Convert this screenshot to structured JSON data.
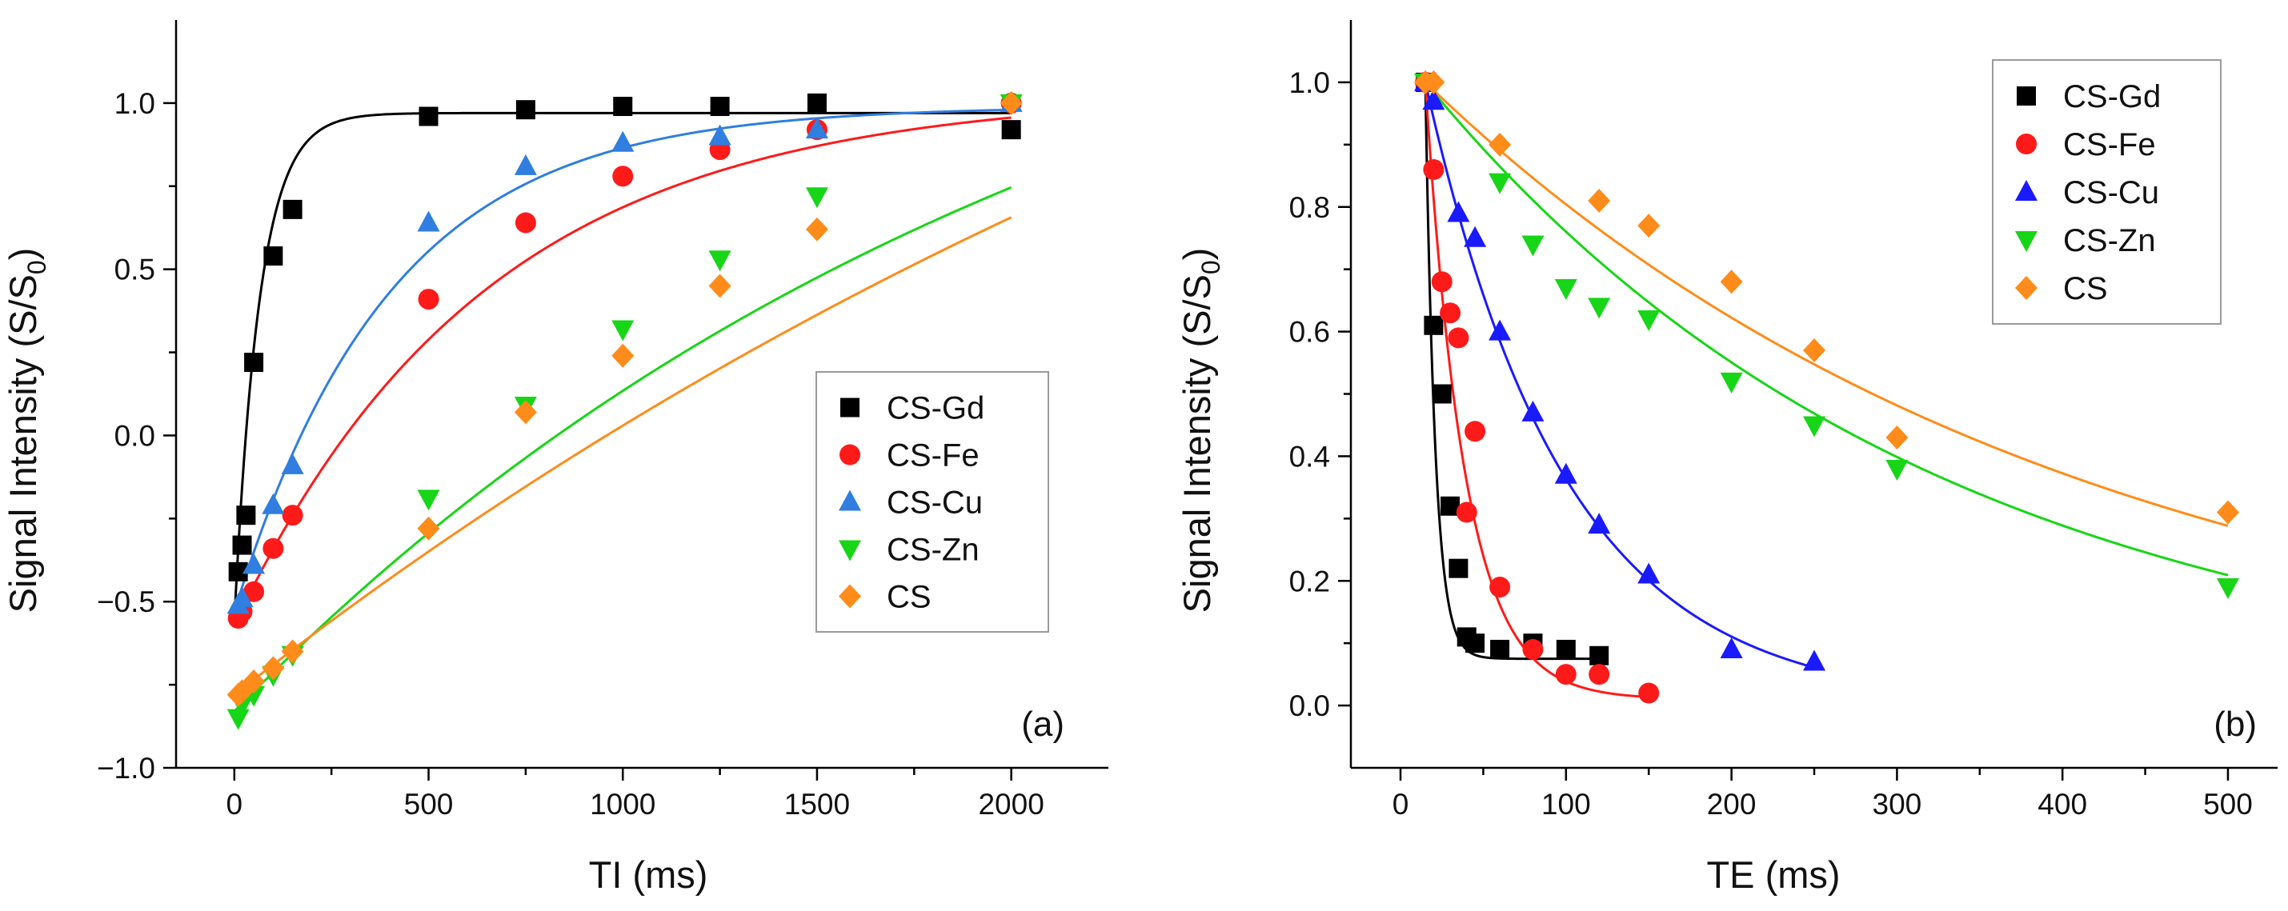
{
  "figure": {
    "panels_text": [
      "(a)",
      "(b)"
    ]
  },
  "chart_data": [
    {
      "type": "scatter",
      "panel_label": "(a)",
      "title": "",
      "xlabel": "TI (ms)",
      "ylabel": "Signal Intensity (S/S0)",
      "ylabel_parts": {
        "main": "Signal Intensity (S/S",
        "sub": "0",
        "end": ")"
      },
      "xlim": [
        -150,
        2250
      ],
      "ylim": [
        -1.0,
        1.25
      ],
      "xticks": [
        0,
        500,
        1000,
        1500,
        2000
      ],
      "xtick_labels": [
        "0",
        "500",
        "1000",
        "1500",
        "2000"
      ],
      "yticks": [
        -1.0,
        -0.5,
        0.0,
        0.5,
        1.0
      ],
      "ytick_labels": [
        "−1.0",
        "−0.5",
        "0.0",
        "0.5",
        "1.0"
      ],
      "legend_position": "lower-right",
      "series": [
        {
          "name": "CS-Gd",
          "color": "#000000",
          "marker": "square",
          "x": [
            10,
            20,
            30,
            50,
            100,
            150,
            500,
            750,
            1000,
            1250,
            1500,
            2000
          ],
          "y": [
            -0.41,
            -0.33,
            -0.24,
            0.22,
            0.54,
            0.68,
            0.96,
            0.98,
            0.99,
            0.99,
            1.0,
            0.92
          ],
          "fit": {
            "model": "ir",
            "S0": 0.97,
            "A": 1.53,
            "T": 65
          }
        },
        {
          "name": "CS-Fe",
          "color": "#ff1a1a",
          "marker": "circle",
          "x": [
            10,
            20,
            50,
            100,
            150,
            500,
            750,
            1000,
            1250,
            1500,
            2000
          ],
          "y": [
            -0.55,
            -0.53,
            -0.47,
            -0.34,
            -0.24,
            0.41,
            0.64,
            0.78,
            0.86,
            0.92,
            1.0
          ],
          "fit": {
            "model": "ir",
            "S0": 1.03,
            "A": 1.6,
            "T": 650
          }
        },
        {
          "name": "CS-Cu",
          "color": "#2f7ee0",
          "marker": "triangle-up",
          "x": [
            10,
            20,
            50,
            100,
            150,
            500,
            750,
            1000,
            1250,
            1500,
            2000
          ],
          "y": [
            -0.51,
            -0.49,
            -0.39,
            -0.21,
            -0.09,
            0.64,
            0.81,
            0.88,
            0.9,
            0.92,
            1.0
          ],
          "fit": {
            "model": "ir",
            "S0": 0.99,
            "A": 1.52,
            "T": 400
          }
        },
        {
          "name": "CS-Zn",
          "color": "#17d617",
          "marker": "triangle-down",
          "x": [
            10,
            20,
            50,
            100,
            150,
            500,
            750,
            1000,
            1250,
            1500,
            2000
          ],
          "y": [
            -0.85,
            -0.81,
            -0.78,
            -0.72,
            -0.66,
            -0.19,
            0.09,
            0.32,
            0.53,
            0.72,
            1.0
          ],
          "fit": {
            "model": "ir",
            "S0": 1.81,
            "A": 2.64,
            "T": 2200
          }
        },
        {
          "name": "CS",
          "color": "#ff8c1a",
          "marker": "diamond",
          "x": [
            10,
            20,
            50,
            100,
            150,
            500,
            750,
            1000,
            1250,
            1500,
            2000
          ],
          "y": [
            -0.78,
            -0.77,
            -0.74,
            -0.7,
            -0.65,
            -0.28,
            0.07,
            0.24,
            0.45,
            0.62,
            1.0
          ],
          "fit": {
            "model": "ir",
            "S0": 2.8,
            "A": 3.58,
            "T": 3900
          }
        }
      ]
    },
    {
      "type": "scatter",
      "panel_label": "(b)",
      "title": "",
      "xlabel": "TE (ms)",
      "ylabel": "Signal Intensity (S/S0)",
      "ylabel_parts": {
        "main": "Signal Intensity (S/S",
        "sub": "0",
        "end": ")"
      },
      "xlim": [
        -30,
        530
      ],
      "ylim": [
        -0.1,
        1.1
      ],
      "xticks": [
        0,
        100,
        200,
        300,
        400,
        500
      ],
      "xtick_labels": [
        "0",
        "100",
        "200",
        "300",
        "400",
        "500"
      ],
      "yticks": [
        0.0,
        0.2,
        0.4,
        0.6,
        0.8,
        1.0
      ],
      "ytick_labels": [
        "0.0",
        "0.2",
        "0.4",
        "0.6",
        "0.8",
        "1.0"
      ],
      "legend_position": "top-right",
      "series": [
        {
          "name": "CS-Gd",
          "color": "#000000",
          "marker": "square",
          "x": [
            15,
            20,
            25,
            30,
            35,
            40,
            45,
            60,
            80,
            100,
            120
          ],
          "y": [
            1.0,
            0.61,
            0.5,
            0.32,
            0.22,
            0.11,
            0.1,
            0.09,
            0.1,
            0.09,
            0.08
          ],
          "fit": {
            "model": "t2",
            "y0": 0.075,
            "A": 0.925,
            "T": 6,
            "x0": 15,
            "xmax": 120
          }
        },
        {
          "name": "CS-Fe",
          "color": "#ff1a1a",
          "marker": "circle",
          "x": [
            15,
            20,
            25,
            30,
            35,
            40,
            45,
            60,
            80,
            100,
            120,
            150
          ],
          "y": [
            1.0,
            0.86,
            0.68,
            0.63,
            0.59,
            0.31,
            0.44,
            0.19,
            0.09,
            0.05,
            0.05,
            0.02
          ],
          "fit": {
            "model": "t2",
            "y0": 0.01,
            "A": 0.99,
            "T": 24,
            "x0": 15,
            "xmax": 150
          }
        },
        {
          "name": "CS-Cu",
          "color": "#1a1aff",
          "marker": "triangle-up",
          "x": [
            15,
            20,
            35,
            45,
            60,
            80,
            100,
            120,
            150,
            200,
            250
          ],
          "y": [
            1.0,
            0.97,
            0.79,
            0.75,
            0.6,
            0.47,
            0.37,
            0.29,
            0.21,
            0.09,
            0.07
          ],
          "fit": {
            "model": "t2",
            "y0": 0.0,
            "A": 1.0,
            "T": 84,
            "x0": 15,
            "xmax": 250
          }
        },
        {
          "name": "CS-Zn",
          "color": "#17d617",
          "marker": "triangle-down",
          "x": [
            15,
            60,
            80,
            100,
            120,
            150,
            200,
            250,
            300,
            500
          ],
          "y": [
            1.0,
            0.84,
            0.74,
            0.67,
            0.64,
            0.62,
            0.52,
            0.45,
            0.38,
            0.19
          ],
          "fit": {
            "model": "t2",
            "y0": 0.0,
            "A": 1.0,
            "T": 310,
            "x0": 15,
            "xmax": 500
          }
        },
        {
          "name": "CS",
          "color": "#ff8c1a",
          "marker": "diamond",
          "x": [
            15,
            20,
            60,
            120,
            150,
            200,
            250,
            300,
            500
          ],
          "y": [
            1.0,
            1.0,
            0.9,
            0.81,
            0.77,
            0.68,
            0.57,
            0.43,
            0.31
          ],
          "fit": {
            "model": "t2",
            "y0": 0.0,
            "A": 1.0,
            "T": 390,
            "x0": 15,
            "xmax": 500
          }
        }
      ]
    }
  ]
}
